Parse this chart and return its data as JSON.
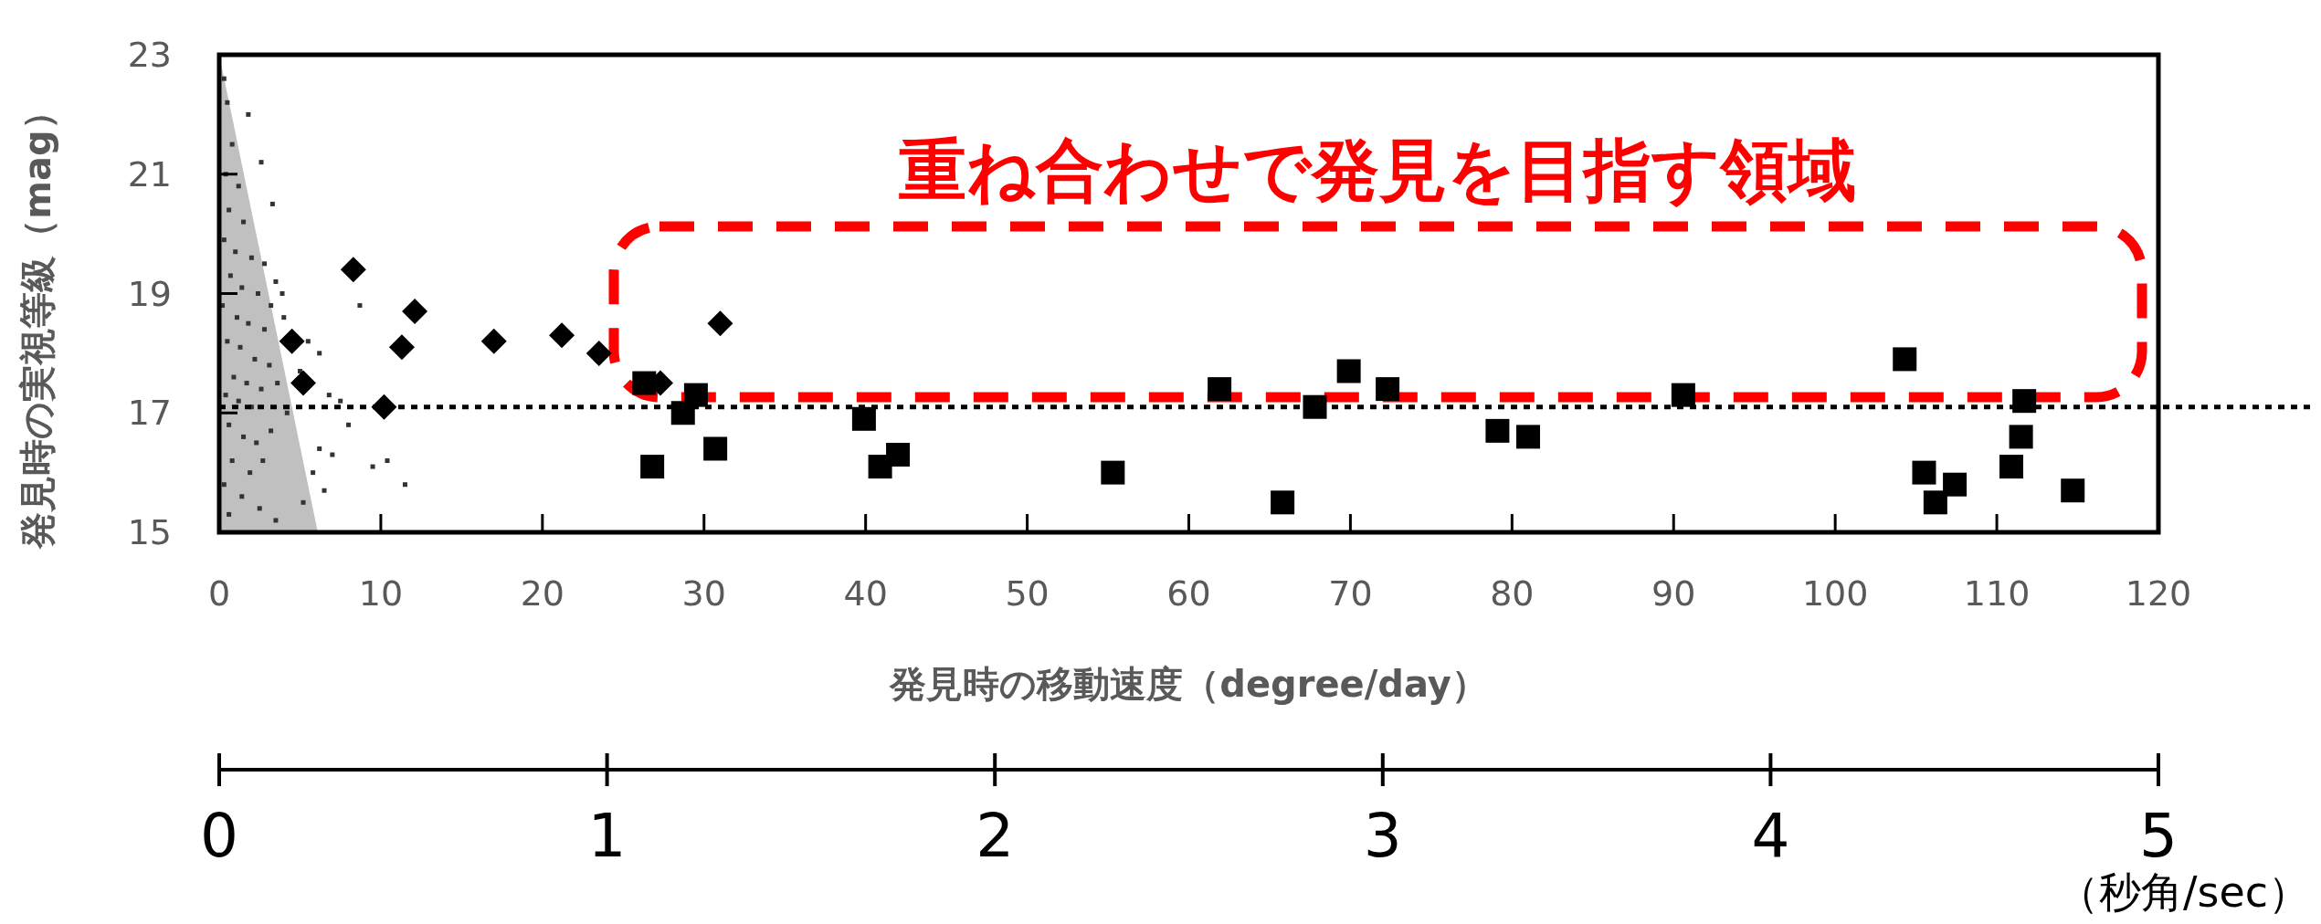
{
  "chart_data": {
    "type": "scatter",
    "xlabel": "発見時の移動速度（degree/day）",
    "ylabel": "発見時の実視等級（mag）",
    "x2label": "（秒角/sec）",
    "xlim": [
      0,
      120
    ],
    "xticks": [
      0,
      10,
      20,
      30,
      40,
      50,
      60,
      70,
      80,
      90,
      100,
      110,
      120
    ],
    "ylim": [
      15,
      23
    ],
    "yticks": [
      15,
      17,
      19,
      21,
      23
    ],
    "x2lim": [
      0,
      5
    ],
    "x2ticks": [
      0,
      1,
      2,
      3,
      4,
      5
    ],
    "grid": false,
    "ref_lines": [
      {
        "axis": "y",
        "value": 17.1,
        "line_style": "dotted",
        "color": "#000000"
      }
    ],
    "annotations": [
      "重ね合わせで発見を目指す領域"
    ],
    "series": [
      {
        "type": "area",
        "color": "#c0c0c0",
        "x": [
          0,
          6.1
        ],
        "values": [
          23,
          15
        ]
      },
      {
        "marker": "square",
        "color": "#333333",
        "x": [
          0.3,
          0.5,
          0.8,
          0.4,
          1.2,
          0.6,
          1.5,
          0.3,
          1.0,
          2.0,
          0.7,
          1.4,
          2.4,
          0.2,
          1.1,
          1.8,
          2.8,
          0.5,
          1.3,
          2.2,
          3.1,
          0.9,
          1.7,
          2.6,
          3.6,
          0.4,
          1.2,
          2.0,
          0.6,
          1.5,
          2.3,
          3.2,
          0.8,
          1.9,
          2.7,
          0.3,
          1.4,
          2.5,
          3.5,
          0.6,
          2.8,
          3.5,
          3.2,
          4.0,
          3.9,
          5.5,
          6.2,
          5.0,
          6.8,
          7.5,
          8.0,
          6.2,
          7.0,
          5.8,
          9.5,
          5.2,
          6.5,
          3.3,
          2.6,
          1.8,
          4.2,
          8.7,
          10.4,
          11.5
        ],
        "values": [
          22.6,
          22.2,
          21.5,
          21.0,
          20.8,
          20.4,
          20.2,
          19.9,
          19.7,
          19.6,
          19.3,
          19.1,
          19.0,
          18.8,
          18.6,
          18.5,
          18.4,
          18.2,
          18.1,
          17.9,
          17.8,
          17.6,
          17.5,
          17.4,
          17.5,
          17.3,
          17.2,
          17.1,
          16.8,
          16.6,
          16.5,
          16.7,
          16.2,
          16.0,
          16.2,
          15.8,
          15.6,
          15.4,
          15.2,
          15.3,
          19.5,
          19.2,
          18.8,
          18.6,
          19.0,
          18.2,
          18.0,
          17.7,
          17.3,
          17.2,
          16.8,
          16.4,
          16.3,
          16.0,
          16.1,
          15.5,
          15.7,
          20.5,
          21.2,
          22.0,
          17.0,
          18.8,
          16.2,
          15.8
        ]
      },
      {
        "marker": "diamond",
        "color": "#000000",
        "x": [
          4.5,
          5.2,
          8.3,
          10.2,
          11.3,
          12.1,
          17.0,
          21.2,
          23.5,
          27.3,
          31.0
        ],
        "values": [
          18.2,
          17.5,
          19.4,
          17.1,
          18.1,
          18.7,
          18.2,
          18.3,
          18.0,
          17.5,
          18.5
        ]
      },
      {
        "marker": "square",
        "color": "#000000",
        "x": [
          26.3,
          26.8,
          29.5,
          28.7,
          30.7,
          39.9,
          40.9,
          42.0,
          55.3,
          61.9,
          65.8,
          67.8,
          69.9,
          72.3,
          79.1,
          81.0,
          90.6,
          104.3,
          105.5,
          106.2,
          107.4,
          110.9,
          111.5,
          111.7,
          114.7
        ],
        "values": [
          17.5,
          16.1,
          17.3,
          17.0,
          16.4,
          16.9,
          16.1,
          16.3,
          16.0,
          17.4,
          15.5,
          17.1,
          17.7,
          17.4,
          16.7,
          16.6,
          17.3,
          17.9,
          16.0,
          15.5,
          15.8,
          16.1,
          16.6,
          17.2,
          15.7
        ]
      }
    ]
  }
}
